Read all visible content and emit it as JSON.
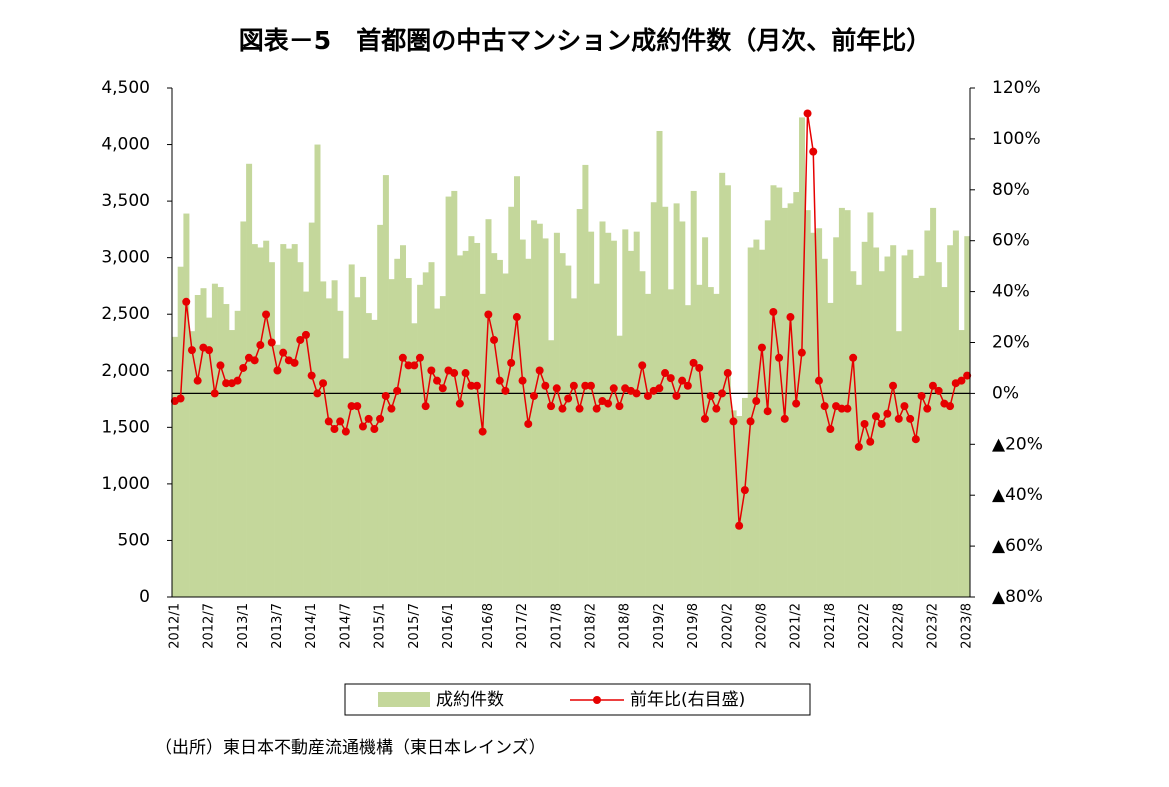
{
  "chart_data": {
    "type": "bar-line",
    "title": "図表－5　首都圏の中古マンション成約件数（月次、前年比）",
    "source": "（出所）東日本不動産流通機構（東日本レインズ）",
    "categories": [
      "2012/1",
      null,
      null,
      null,
      null,
      null,
      "2012/7",
      null,
      null,
      null,
      null,
      null,
      "2013/1",
      null,
      null,
      null,
      null,
      null,
      "2013/7",
      null,
      null,
      null,
      null,
      null,
      "2014/1",
      null,
      null,
      null,
      null,
      null,
      "2014/7",
      null,
      null,
      null,
      null,
      null,
      "2015/1",
      null,
      null,
      null,
      null,
      null,
      "2015/7",
      null,
      null,
      null,
      null,
      null,
      "2016/1",
      null,
      null,
      null,
      null,
      null,
      null,
      "2016/8",
      null,
      null,
      null,
      null,
      null,
      "2017/2",
      null,
      null,
      null,
      null,
      null,
      "2017/8",
      null,
      null,
      null,
      null,
      null,
      "2018/2",
      null,
      null,
      null,
      null,
      null,
      "2018/8",
      null,
      null,
      null,
      null,
      null,
      "2019/2",
      null,
      null,
      null,
      null,
      null,
      "2019/8",
      null,
      null,
      null,
      null,
      null,
      "2020/2",
      null,
      null,
      null,
      null,
      null,
      "2020/8",
      null,
      null,
      null,
      null,
      null,
      "2021/2",
      null,
      null,
      null,
      null,
      null,
      "2021/8",
      null,
      null,
      null,
      null,
      null,
      "2022/2",
      null,
      null,
      null,
      null,
      null,
      "2022/8",
      null,
      null,
      null,
      null,
      null,
      "2023/2",
      null,
      null,
      null,
      null,
      null,
      "2023/8"
    ],
    "series": [
      {
        "name": "成約件数",
        "color": "#c4d79b",
        "axis": "y",
        "values": [
          2300,
          2920,
          3390,
          2350,
          2670,
          2730,
          2470,
          2770,
          2740,
          2590,
          2360,
          2530,
          3320,
          3830,
          3120,
          3090,
          3150,
          2960,
          2230,
          3120,
          3080,
          3120,
          2960,
          2700,
          3310,
          4000,
          2790,
          2640,
          2800,
          2530,
          2110,
          2940,
          2650,
          2830,
          2510,
          2450,
          3290,
          3730,
          2810,
          2990,
          3110,
          2820,
          2420,
          2760,
          2870,
          2960,
          2550,
          2660,
          3540,
          3590,
          3020,
          3060,
          3190,
          3130,
          2680,
          3340,
          3040,
          2980,
          2860,
          3450,
          3720,
          3160,
          2990,
          3330,
          3300,
          3170,
          2270,
          3220,
          3040,
          2930,
          2640,
          3430,
          3820,
          3230,
          2770,
          3320,
          3220,
          3150,
          2310,
          3250,
          3060,
          3230,
          2880,
          2680,
          3490,
          4120,
          3450,
          2720,
          3480,
          3320,
          2580,
          3590,
          2760,
          3180,
          2740,
          2680,
          3750,
          3640,
          1650,
          1600,
          1760,
          3090,
          3160,
          3070,
          3330,
          3640,
          3620,
          3440,
          3480,
          3580,
          4240,
          3420,
          3220,
          3260,
          2990,
          2600,
          3180,
          3440,
          3420,
          2880,
          2760,
          3140,
          3400,
          3090,
          2880,
          3010,
          3110,
          2350,
          3020,
          3070,
          2820,
          2840,
          3240,
          3440,
          2960,
          2740,
          3110,
          3240,
          2360,
          3190
        ]
      },
      {
        "name": "前年比(右目盛)",
        "color": "#e60000",
        "axis": "y2",
        "values": [
          -3,
          -2,
          36,
          17,
          5,
          18,
          17,
          0,
          11,
          4,
          4,
          5,
          10,
          14,
          13,
          19,
          31,
          20,
          9,
          16,
          13,
          12,
          21,
          23,
          7,
          0,
          4,
          -11,
          -14,
          -11,
          -15,
          -5,
          -5,
          -13,
          -10,
          -14,
          -10,
          -1,
          -6,
          1,
          14,
          11,
          11,
          14,
          -5,
          9,
          5,
          2,
          9,
          8,
          -4,
          8,
          3,
          3,
          -15,
          31,
          21,
          5,
          1,
          12,
          30,
          5,
          -12,
          -1,
          9,
          3,
          -5,
          2,
          -6,
          -2,
          3,
          -6,
          3,
          3,
          -6,
          -3,
          -4,
          2,
          -5,
          2,
          1,
          0,
          11,
          -1,
          1,
          2,
          8,
          6,
          -1,
          5,
          3,
          12,
          10,
          -10,
          -1,
          -6,
          0,
          8,
          -11,
          -52,
          -38,
          -11,
          -3,
          18,
          -7,
          32,
          14,
          -10,
          30,
          -4,
          16,
          110,
          95,
          5,
          -5,
          -14,
          -5,
          -6,
          -6,
          14,
          -21,
          -12,
          -19,
          -9,
          -12,
          -8,
          3,
          -10,
          -5,
          -10,
          -18,
          -1,
          -6,
          3,
          1,
          -4,
          -5,
          4,
          5,
          7
        ]
      }
    ],
    "ylim": [
      0,
      4500
    ],
    "yticks": [
      0,
      500,
      {
        "value": 1000,
        "label": "1,000"
      },
      {
        "value": 1500,
        "label": "1,500"
      },
      {
        "value": 2000,
        "label": "2,000"
      },
      {
        "value": 2500,
        "label": "2,500"
      },
      {
        "value": 3000,
        "label": "3,000"
      },
      {
        "value": 3500,
        "label": "3,500"
      },
      {
        "value": 4000,
        "label": "4,000"
      },
      {
        "value": 4500,
        "label": "4,500"
      }
    ],
    "y2lim": [
      -80,
      120
    ],
    "y2ticks": [
      {
        "value": -80,
        "label": "▲80%"
      },
      {
        "value": -60,
        "label": "▲60%"
      },
      {
        "value": -40,
        "label": "▲40%"
      },
      {
        "value": -20,
        "label": "▲20%"
      },
      {
        "value": 0,
        "label": "0%"
      },
      {
        "value": 20,
        "label": "20%"
      },
      {
        "value": 40,
        "label": "40%"
      },
      {
        "value": 60,
        "label": "60%"
      },
      {
        "value": 80,
        "label": "80%"
      },
      {
        "value": 100,
        "label": "100%"
      },
      {
        "value": 120,
        "label": "120%"
      }
    ],
    "legend": "bottom"
  }
}
